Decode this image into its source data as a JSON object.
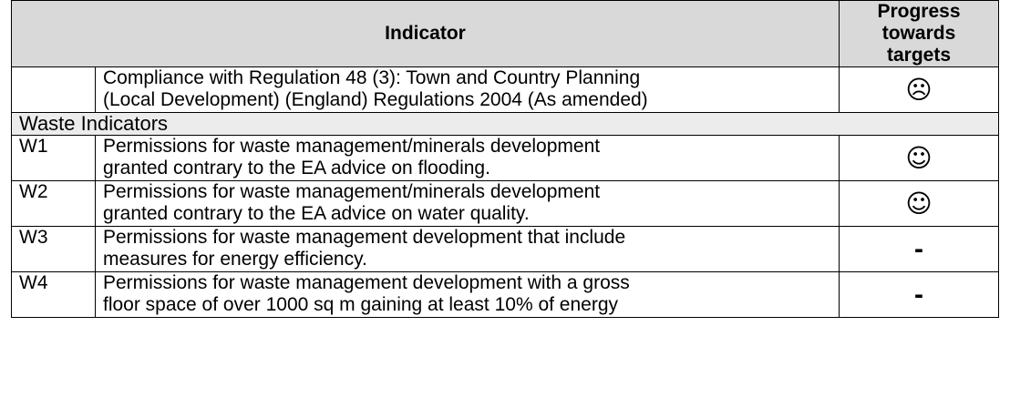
{
  "table": {
    "header": {
      "indicator": "Indicator",
      "progress": [
        "Progress",
        "towards",
        "targets"
      ]
    },
    "rows": [
      {
        "indicator": [
          "Compliance with Regulation 48 (3): Town and Country Planning",
          "(Local Development) (England) Regulations 2004 (As amended)"
        ],
        "progress": "☹"
      },
      {
        "section": "Waste Indicators"
      },
      {
        "code": "W1",
        "indicator": [
          "Permissions for waste management/minerals development",
          "granted contrary to the EA advice on flooding."
        ],
        "progress": "☺"
      },
      {
        "code": "W2",
        "indicator": [
          "Permissions for waste management/minerals development",
          "granted contrary to the EA advice on water quality."
        ],
        "progress": "☺"
      },
      {
        "code": "W3",
        "indicator": [
          "Permissions for waste management development that include",
          "measures for energy efficiency."
        ],
        "progress": "-"
      },
      {
        "code": "W4",
        "indicator": [
          "Permissions for waste management development with a gross",
          "floor space of over 1000 sq m gaining at least 10% of energy"
        ],
        "progress": "-"
      }
    ]
  }
}
